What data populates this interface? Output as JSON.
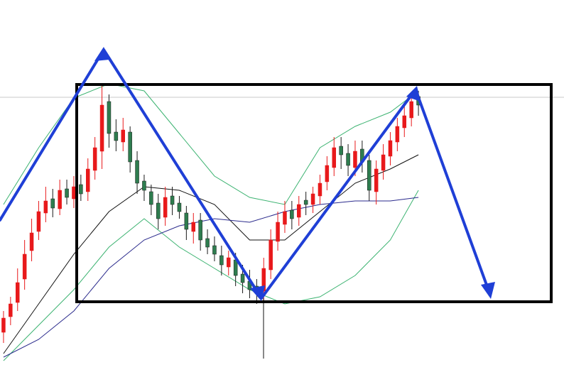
{
  "chart_data": {
    "type": "candlestick",
    "xlim": [
      -0.5,
      79.7
    ],
    "ylim": [
      0,
      538
    ],
    "up_color": "#e8191b",
    "down_color": "#1a1a1a",
    "open": [
      70,
      92,
      112,
      145,
      185,
      212,
      238,
      258,
      244,
      272,
      258,
      278,
      268,
      298,
      325,
      395,
      352,
      338,
      352,
      312,
      283,
      268,
      252,
      232,
      262,
      252,
      238,
      212,
      228,
      202,
      192,
      178,
      162,
      172,
      152,
      142,
      135,
      128,
      158,
      198,
      222,
      242,
      232,
      256,
      250,
      262,
      282,
      302,
      332,
      322,
      302,
      328,
      312,
      268,
      298,
      318,
      338,
      358,
      372,
      402
    ],
    "high": [
      100,
      120,
      160,
      200,
      230,
      255,
      275,
      272,
      285,
      285,
      290,
      292,
      315,
      345,
      420,
      405,
      370,
      372,
      360,
      325,
      292,
      278,
      265,
      275,
      275,
      262,
      248,
      238,
      238,
      215,
      205,
      192,
      185,
      182,
      165,
      158,
      145,
      175,
      215,
      240,
      255,
      255,
      262,
      268,
      275,
      292,
      318,
      345,
      345,
      335,
      340,
      340,
      320,
      312,
      335,
      352,
      372,
      390,
      405,
      410
    ],
    "low": [
      55,
      80,
      100,
      130,
      170,
      200,
      225,
      232,
      235,
      250,
      245,
      255,
      255,
      285,
      300,
      330,
      325,
      325,
      295,
      265,
      255,
      235,
      215,
      220,
      235,
      230,
      200,
      195,
      185,
      180,
      170,
      150,
      150,
      135,
      125,
      118,
      110,
      115,
      145,
      185,
      210,
      215,
      220,
      235,
      238,
      250,
      270,
      290,
      300,
      290,
      290,
      295,
      255,
      250,
      285,
      305,
      325,
      345,
      360,
      375
    ],
    "close": [
      90,
      110,
      140,
      180,
      210,
      240,
      255,
      245,
      270,
      260,
      275,
      265,
      300,
      330,
      390,
      350,
      340,
      355,
      310,
      280,
      270,
      250,
      230,
      260,
      250,
      240,
      215,
      225,
      200,
      190,
      180,
      165,
      175,
      150,
      140,
      130,
      125,
      160,
      200,
      225,
      240,
      230,
      250,
      250,
      265,
      280,
      305,
      330,
      320,
      305,
      325,
      310,
      270,
      300,
      320,
      340,
      360,
      375,
      395,
      390
    ],
    "series": [
      {
        "color": "#3cb371",
        "x": [
          0,
          5,
          10,
          15,
          20,
          25,
          30,
          35,
          40,
          45,
          50,
          55,
          59
        ],
        "values": [
          250,
          330,
          400,
          420,
          410,
          350,
          290,
          260,
          250,
          330,
          360,
          380,
          410
        ]
      },
      {
        "color": "#3cb371",
        "x": [
          0,
          5,
          10,
          15,
          20,
          25,
          30,
          35,
          40,
          45,
          50,
          55,
          59
        ],
        "values": [
          30,
          80,
          130,
          190,
          230,
          190,
          160,
          130,
          110,
          120,
          150,
          200,
          270
        ]
      },
      {
        "color": "#111111",
        "x": [
          0,
          5,
          10,
          15,
          20,
          25,
          30,
          35,
          40,
          45,
          50,
          55,
          59
        ],
        "values": [
          40,
          110,
          180,
          240,
          275,
          270,
          250,
          200,
          200,
          240,
          280,
          300,
          320
        ]
      },
      {
        "color": "#2a2a8c",
        "x": [
          0,
          5,
          10,
          15,
          20,
          25,
          30,
          35,
          40,
          45,
          50,
          55,
          59
        ],
        "values": [
          35,
          60,
          100,
          160,
          200,
          220,
          230,
          225,
          240,
          250,
          255,
          255,
          260
        ]
      }
    ]
  }
}
